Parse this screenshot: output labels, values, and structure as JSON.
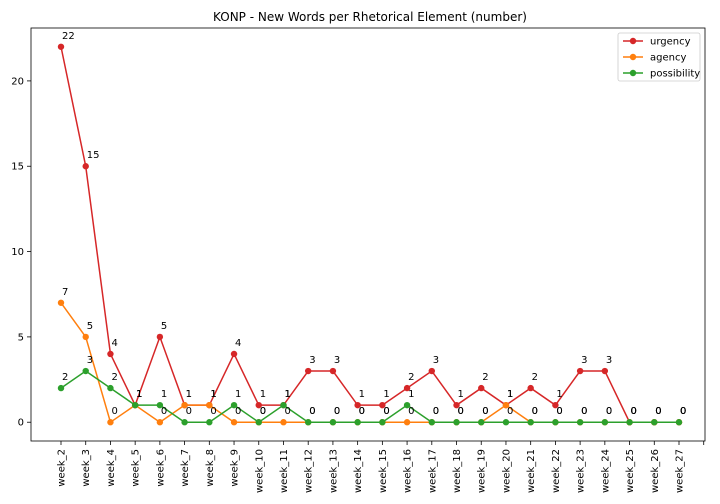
{
  "chart_data": {
    "type": "line",
    "title": "KONP - New Words per Rhetorical Element (number)",
    "xlabel": "",
    "ylabel": "",
    "categories": [
      "week_2",
      "week_3",
      "week_4",
      "week_5",
      "week_6",
      "week_7",
      "week_8",
      "week_9",
      "week_10",
      "week_11",
      "week_12",
      "week_13",
      "week_14",
      "week_15",
      "week_16",
      "week_17",
      "week_18",
      "week_19",
      "week_20",
      "week_21",
      "week_22",
      "week_23",
      "week_24",
      "week_25",
      "week_26",
      "week_27"
    ],
    "ylim": [
      -1.1,
      23.1
    ],
    "yticks": [
      0,
      5,
      10,
      15,
      20
    ],
    "grid": false,
    "legend": "top-right",
    "series": [
      {
        "name": "urgency",
        "color": "#d62728",
        "values": [
          22,
          15,
          4,
          1,
          5,
          1,
          1,
          4,
          1,
          1,
          3,
          3,
          1,
          1,
          2,
          3,
          1,
          2,
          1,
          2,
          1,
          3,
          3,
          0,
          0,
          0
        ]
      },
      {
        "name": "agency",
        "color": "#ff7f0e",
        "values": [
          7,
          5,
          0,
          1,
          0,
          1,
          1,
          0,
          0,
          0,
          0,
          0,
          0,
          0,
          0,
          0,
          0,
          0,
          1,
          0,
          0,
          0,
          0,
          0,
          0,
          0
        ]
      },
      {
        "name": "possibility",
        "color": "#2ca02c",
        "values": [
          2,
          3,
          2,
          1,
          1,
          0,
          0,
          1,
          0,
          1,
          0,
          0,
          0,
          0,
          1,
          0,
          0,
          0,
          0,
          0,
          0,
          0,
          0,
          0,
          0,
          0
        ]
      }
    ]
  }
}
